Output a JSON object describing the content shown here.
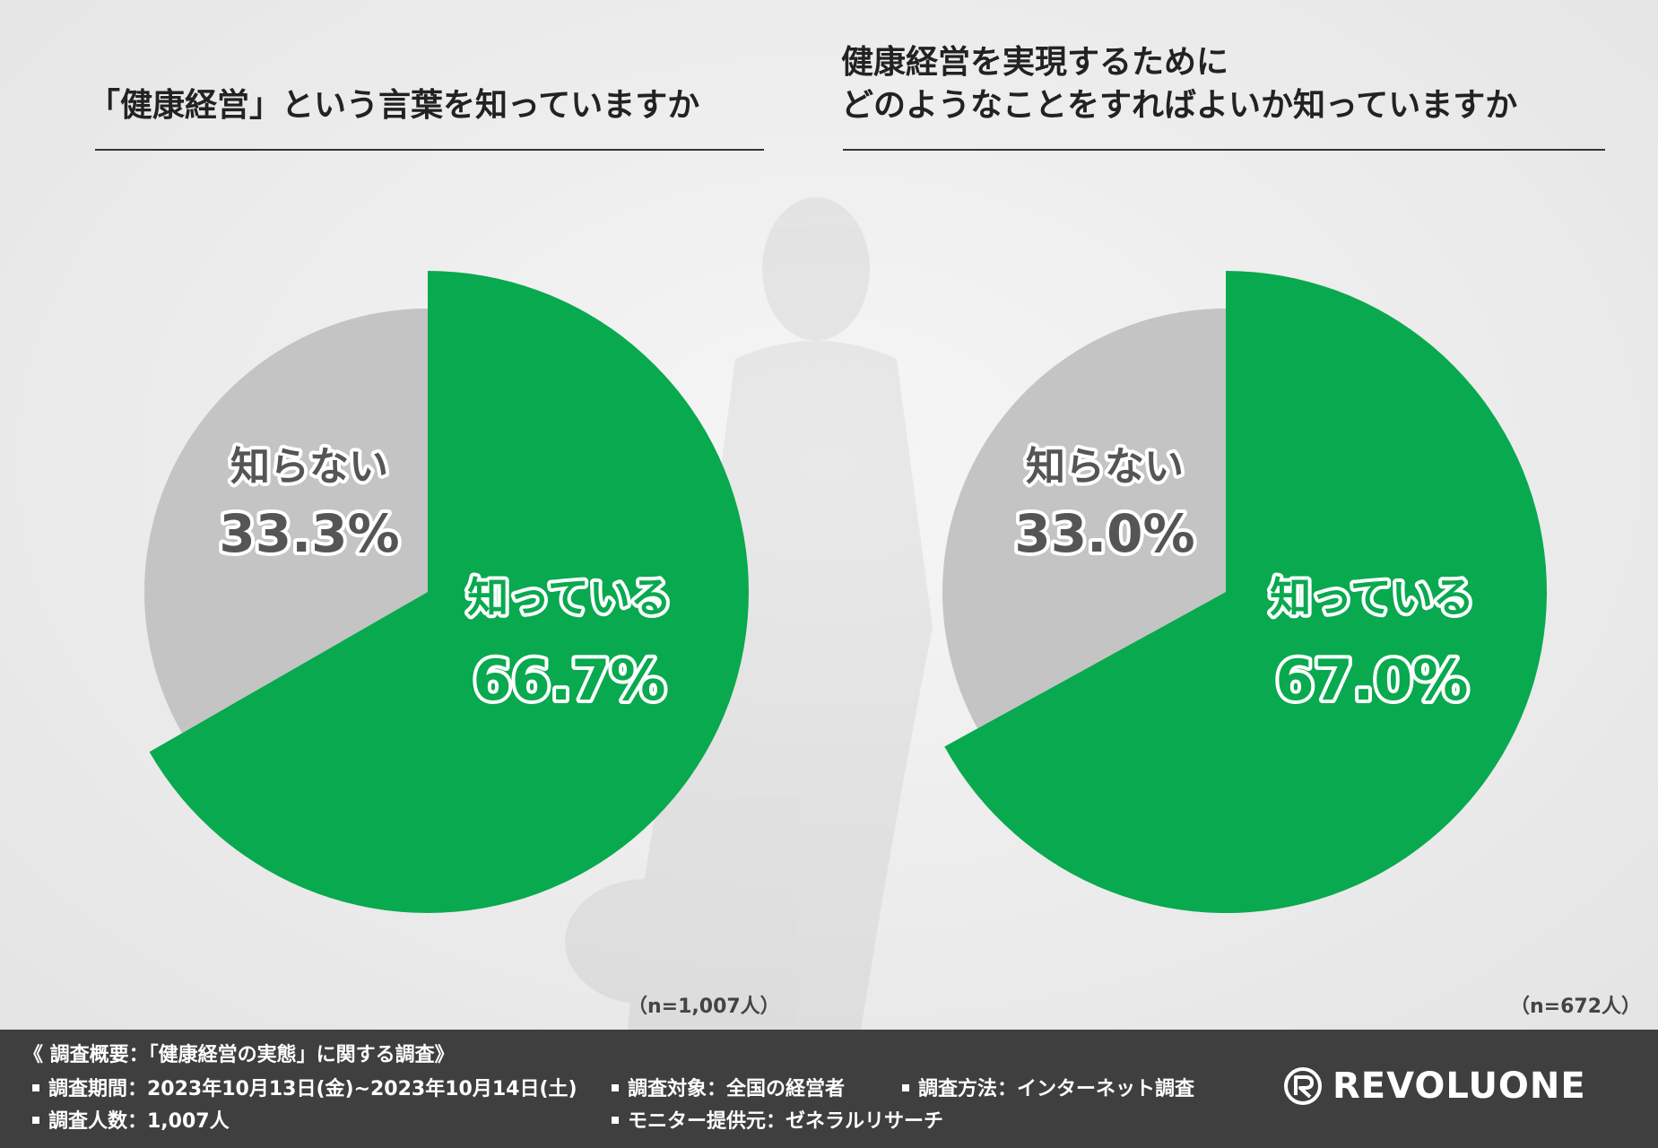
{
  "chart_data": [
    {
      "type": "pie",
      "title": "「健康経営」という言葉を知っていますか",
      "slices": [
        {
          "label": "知っている",
          "value": 66.7,
          "display": "66.7%",
          "color": "#09a94f"
        },
        {
          "label": "知らない",
          "value": 33.3,
          "display": "33.3%",
          "color": "#c4c4c4"
        }
      ],
      "sample": "（n=1,007人）"
    },
    {
      "type": "pie",
      "title_lines": [
        "健康経営を実現するために",
        "どのようなことをすればよいか知っていますか"
      ],
      "slices": [
        {
          "label": "知っている",
          "value": 67.0,
          "display": "67.0%",
          "color": "#09a94f"
        },
        {
          "label": "知らない",
          "value": 33.0,
          "display": "33.0%",
          "color": "#c4c4c4"
        }
      ],
      "sample": "（n=672人）"
    }
  ],
  "footer": {
    "heading": "《 調査概要：「健康経営の実態」に関する調査》",
    "items": [
      "調査期間：2023年10月13日(金)~2023年10月14日(土)",
      "調査対象：全国の経営者",
      "調査方法：インターネット調査",
      "調査人数：1,007人",
      "モニター提供元：ゼネラルリサーチ"
    ],
    "logo_text": "REVOLUONE"
  }
}
